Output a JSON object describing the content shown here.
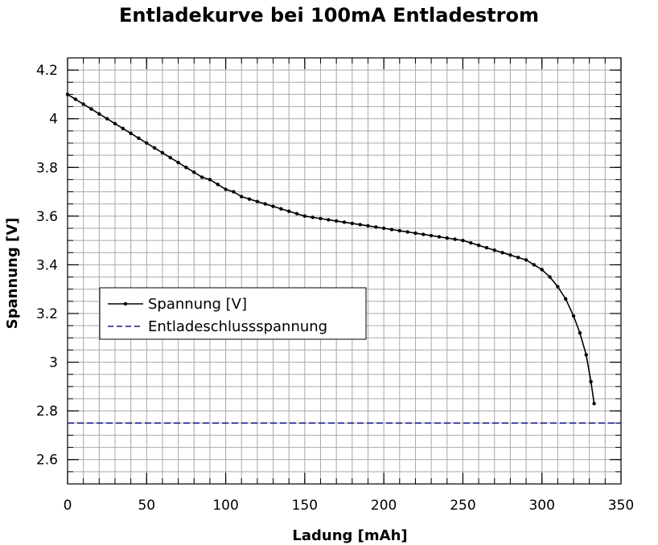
{
  "chart_data": {
    "type": "line",
    "title": "Entladekurve bei 100mA Entladestrom",
    "xlabel": "Ladung [mAh]",
    "ylabel": "Spannung [V]",
    "xlim": [
      0,
      350
    ],
    "ylim": [
      2.5,
      4.25
    ],
    "x_ticks": [
      0,
      50,
      100,
      150,
      200,
      250,
      300,
      350
    ],
    "y_ticks": [
      2.6,
      2.8,
      3,
      3.2,
      3.4,
      3.6,
      3.8,
      4,
      4.2
    ],
    "x_tick_labels": [
      "0",
      "50",
      "100",
      "150",
      "200",
      "250",
      "300",
      "350"
    ],
    "y_tick_labels": [
      "2.6",
      "2.8",
      "3",
      "3.2",
      "3.4",
      "3.6",
      "3.8",
      "4",
      "4.2"
    ],
    "grid": true,
    "legend_position": "middle-left",
    "series": [
      {
        "name": "Spannung [V]",
        "color": "#000000",
        "marker": "dot",
        "line_style": "solid",
        "x": [
          0,
          5,
          10,
          15,
          20,
          25,
          30,
          35,
          40,
          45,
          50,
          55,
          60,
          65,
          70,
          75,
          80,
          85,
          90,
          95,
          100,
          105,
          110,
          115,
          120,
          125,
          130,
          135,
          140,
          145,
          150,
          155,
          160,
          165,
          170,
          175,
          180,
          185,
          190,
          195,
          200,
          205,
          210,
          215,
          220,
          225,
          230,
          235,
          240,
          245,
          250,
          255,
          260,
          265,
          270,
          275,
          280,
          285,
          290,
          295,
          300,
          305,
          310,
          315,
          320,
          324,
          328,
          331,
          333
        ],
        "y": [
          4.1,
          4.08,
          4.06,
          4.04,
          4.02,
          4.0,
          3.98,
          3.96,
          3.94,
          3.92,
          3.9,
          3.88,
          3.86,
          3.84,
          3.82,
          3.8,
          3.78,
          3.76,
          3.75,
          3.73,
          3.71,
          3.7,
          3.68,
          3.67,
          3.66,
          3.65,
          3.64,
          3.63,
          3.62,
          3.61,
          3.6,
          3.595,
          3.59,
          3.585,
          3.58,
          3.575,
          3.57,
          3.565,
          3.56,
          3.555,
          3.55,
          3.545,
          3.54,
          3.535,
          3.53,
          3.525,
          3.52,
          3.515,
          3.51,
          3.505,
          3.5,
          3.49,
          3.48,
          3.47,
          3.46,
          3.45,
          3.44,
          3.43,
          3.42,
          3.4,
          3.38,
          3.35,
          3.31,
          3.26,
          3.19,
          3.12,
          3.03,
          2.92,
          2.83
        ]
      },
      {
        "name": "Entladeschlussspannung",
        "color": "#1a1a8c",
        "line_style": "dashed",
        "x": [
          0,
          350
        ],
        "y": [
          2.75,
          2.75
        ]
      }
    ]
  }
}
